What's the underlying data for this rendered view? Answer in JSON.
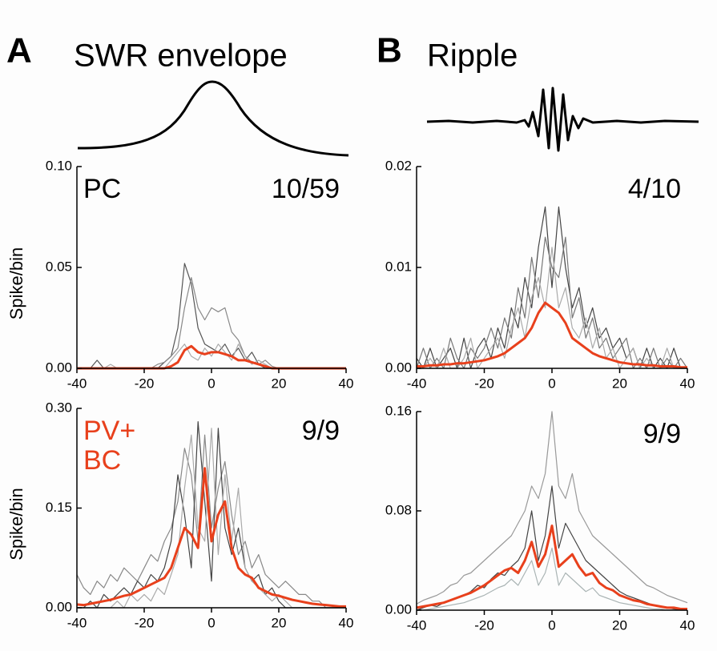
{
  "panels": [
    {
      "letter": "A",
      "title": "SWR envelope"
    },
    {
      "letter": "B",
      "title": "Ripple"
    }
  ],
  "chart_data": [
    {
      "type": "line",
      "ylabel": "Spike/bin",
      "cell_label": [
        "PC"
      ],
      "cell_label_color": "#000000",
      "count_label": "10/59",
      "xlim": [
        -40,
        40
      ],
      "xticks": [
        -40,
        -20,
        0,
        20,
        40
      ],
      "ylim": [
        0,
        0.1
      ],
      "yticks": [
        {
          "value": 0,
          "label": "0.00"
        },
        0.05,
        {
          "value": 0.1,
          "label": "0.10"
        }
      ],
      "x": [
        -40,
        -38,
        -36,
        -34,
        -32,
        -30,
        -28,
        -26,
        -24,
        -22,
        -20,
        -18,
        -16,
        -14,
        -12,
        -10,
        -8,
        -6,
        -4,
        -2,
        0,
        2,
        4,
        6,
        8,
        10,
        12,
        14,
        16,
        18,
        20,
        22,
        24,
        26,
        28,
        30,
        32,
        34,
        36,
        38,
        40
      ],
      "series": [
        {
          "color": "#555555",
          "values": [
            0,
            0,
            0,
            0.004,
            0,
            0,
            0,
            0,
            0,
            0,
            0,
            0,
            0,
            0.003,
            0.006,
            0.02,
            0.052,
            0.042,
            0.02,
            0.012,
            0.01,
            0.008,
            0.012,
            0.006,
            0.01,
            0.004,
            0.008,
            0.002,
            0,
            0,
            0,
            0,
            0,
            0,
            0,
            0,
            0,
            0,
            0,
            0,
            0
          ]
        },
        {
          "color": "#888888",
          "values": [
            0,
            0,
            0,
            0,
            0,
            0,
            0,
            0,
            0,
            0,
            0,
            0,
            0.002,
            0.003,
            0.006,
            0.01,
            0.03,
            0.045,
            0.03,
            0.024,
            0.03,
            0.028,
            0.03,
            0.018,
            0.014,
            0.006,
            0.003,
            0.002,
            0.004,
            0.001,
            0,
            0,
            0,
            0,
            0,
            0,
            0,
            0,
            0,
            0,
            0
          ]
        },
        {
          "color": "#aaaaaa",
          "values": [
            0,
            0,
            0,
            0,
            0,
            0.002,
            0,
            0,
            0,
            0,
            0,
            0,
            0,
            0,
            0.004,
            0.008,
            0.012,
            0.006,
            0.004,
            0.01,
            0.006,
            0.012,
            0.008,
            0.004,
            0.012,
            0.006,
            0.002,
            0.004,
            0.002,
            0,
            0,
            0,
            0,
            0,
            0,
            0,
            0,
            0,
            0,
            0,
            0
          ]
        },
        {
          "color": "#e8401c",
          "values": [
            0,
            0,
            0,
            0,
            0,
            0,
            0,
            0,
            0,
            0,
            0,
            0,
            0,
            0,
            0.001,
            0.003,
            0.009,
            0.011,
            0.008,
            0.007,
            0.008,
            0.008,
            0.007,
            0.006,
            0.004,
            0.004,
            0.003,
            0.002,
            0.001,
            0,
            0,
            0,
            0,
            0,
            0,
            0,
            0,
            0,
            0,
            0,
            0
          ]
        }
      ]
    },
    {
      "type": "line",
      "count_label": "4/10",
      "xlim": [
        -40,
        40
      ],
      "xticks": [
        -40,
        -20,
        0,
        20,
        40
      ],
      "ylim": [
        0,
        0.02
      ],
      "yticks": [
        {
          "value": 0,
          "label": "0.00"
        },
        0.01,
        0.02
      ],
      "x": [
        -40,
        -38,
        -36,
        -34,
        -32,
        -30,
        -28,
        -26,
        -24,
        -22,
        -20,
        -18,
        -16,
        -14,
        -12,
        -10,
        -8,
        -6,
        -4,
        -2,
        0,
        2,
        4,
        6,
        8,
        10,
        12,
        14,
        16,
        18,
        20,
        22,
        24,
        26,
        28,
        30,
        32,
        34,
        36,
        38,
        40
      ],
      "series": [
        {
          "color": "#444444",
          "values": [
            0.001,
            0,
            0.002,
            0,
            0.001,
            0.002,
            0,
            0.003,
            0,
            0.002,
            0.003,
            0.001,
            0.004,
            0.002,
            0.006,
            0.004,
            0.009,
            0.006,
            0.012,
            0.016,
            0.008,
            0.016,
            0.01,
            0.006,
            0.008,
            0.004,
            0.006,
            0.003,
            0.004,
            0.002,
            0.003,
            0.001,
            0.002,
            0,
            0.002,
            0,
            0.001,
            0,
            0.002,
            0,
            0
          ]
        },
        {
          "color": "#777777",
          "values": [
            0,
            0.002,
            0,
            0.001,
            0,
            0.003,
            0.001,
            0,
            0.002,
            0.001,
            0.002,
            0.004,
            0.002,
            0.005,
            0.003,
            0.008,
            0.005,
            0.011,
            0.007,
            0.013,
            0.01,
            0.009,
            0.013,
            0.005,
            0.007,
            0.003,
            0.005,
            0.002,
            0.003,
            0.001,
            0.002,
            0.003,
            0,
            0.001,
            0,
            0.002,
            0,
            0.001,
            0,
            0.001,
            0
          ]
        },
        {
          "color": "#aaaaaa",
          "values": [
            0,
            0,
            0.001,
            0,
            0.002,
            0,
            0,
            0.001,
            0.003,
            0,
            0.001,
            0.002,
            0.003,
            0.001,
            0.004,
            0.006,
            0.003,
            0.007,
            0.009,
            0.006,
            0.012,
            0.006,
            0.008,
            0.004,
            0.003,
            0.005,
            0.002,
            0.004,
            0.001,
            0.002,
            0,
            0.001,
            0.002,
            0,
            0.001,
            0,
            0,
            0.002,
            0,
            0,
            0
          ]
        },
        {
          "color": "#e8401c",
          "values": [
            0.0002,
            0.0002,
            0.0003,
            0.0003,
            0.0004,
            0.0004,
            0.0005,
            0.0005,
            0.0006,
            0.0007,
            0.0008,
            0.001,
            0.0012,
            0.0015,
            0.002,
            0.0025,
            0.003,
            0.004,
            0.0055,
            0.0065,
            0.006,
            0.0055,
            0.0045,
            0.003,
            0.0025,
            0.002,
            0.0015,
            0.0012,
            0.001,
            0.0008,
            0.0006,
            0.0005,
            0.0004,
            0.0004,
            0.0003,
            0.0003,
            0.0002,
            0.0002,
            0.0002,
            0.0001,
            0.0001
          ]
        }
      ]
    },
    {
      "type": "line",
      "ylabel": "Spike/bin",
      "cell_label": [
        "PV+",
        "BC"
      ],
      "cell_label_color": "#e8401c",
      "count_label": "9/9",
      "xlim": [
        -40,
        40
      ],
      "xticks": [
        -40,
        -20,
        0,
        20,
        40
      ],
      "ylim": [
        0,
        0.3
      ],
      "yticks": [
        {
          "value": 0,
          "label": "0.00"
        },
        0.15,
        {
          "value": 0.3,
          "label": "0.30"
        }
      ],
      "x": [
        -40,
        -38,
        -36,
        -34,
        -32,
        -30,
        -28,
        -26,
        -24,
        -22,
        -20,
        -18,
        -16,
        -14,
        -12,
        -10,
        -8,
        -6,
        -4,
        -2,
        0,
        2,
        4,
        6,
        8,
        10,
        12,
        14,
        16,
        18,
        20,
        22,
        24,
        26,
        28,
        30,
        32,
        34,
        36,
        38,
        40
      ],
      "series": [
        {
          "color": "#888888",
          "values": [
            0.05,
            0.03,
            0.02,
            0.04,
            0.03,
            0.05,
            0.04,
            0.06,
            0.05,
            0.04,
            0.06,
            0.08,
            0.07,
            0.1,
            0.12,
            0.16,
            0.24,
            0.2,
            0.1,
            0.26,
            0.12,
            0.18,
            0.22,
            0.14,
            0.08,
            0.1,
            0.06,
            0.08,
            0.05,
            0.04,
            0.03,
            0.04,
            0.03,
            0.02,
            0.02,
            0.01,
            0.01,
            0,
            0,
            0,
            0
          ]
        },
        {
          "color": "#444444",
          "values": [
            0,
            0,
            0.01,
            0,
            0.02,
            0.01,
            0.02,
            0.03,
            0.02,
            0.04,
            0.03,
            0.05,
            0.04,
            0.06,
            0.1,
            0.2,
            0.14,
            0.06,
            0.28,
            0.16,
            0.04,
            0.27,
            0.12,
            0.08,
            0.12,
            0.06,
            0.04,
            0.05,
            0.02,
            0.03,
            0.01,
            0,
            0,
            0,
            0,
            0,
            0,
            0,
            0,
            0,
            0
          ]
        },
        {
          "color": "#aaaaaa",
          "values": [
            0,
            0,
            0,
            0,
            0,
            0,
            0.01,
            0,
            0.02,
            0.01,
            0.02,
            0.01,
            0.03,
            0.02,
            0.05,
            0.08,
            0.18,
            0.26,
            0.12,
            0.1,
            0.27,
            0.08,
            0.2,
            0.1,
            0.18,
            0.06,
            0.04,
            0.03,
            0.02,
            0.01,
            0.02,
            0.01,
            0,
            0,
            0,
            0,
            0,
            0,
            0,
            0,
            0
          ]
        },
        {
          "color": "#e8401c",
          "values": [
            0.005,
            0.004,
            0.006,
            0.008,
            0.01,
            0.012,
            0.015,
            0.018,
            0.02,
            0.025,
            0.03,
            0.035,
            0.04,
            0.045,
            0.06,
            0.09,
            0.12,
            0.11,
            0.09,
            0.21,
            0.1,
            0.14,
            0.16,
            0.09,
            0.06,
            0.05,
            0.045,
            0.03,
            0.025,
            0.02,
            0.018,
            0.015,
            0.012,
            0.01,
            0.008,
            0.006,
            0.005,
            0.004,
            0.003,
            0.002,
            0.002
          ]
        }
      ]
    },
    {
      "type": "line",
      "count_label": "9/9",
      "xlim": [
        -40,
        40
      ],
      "xticks": [
        -40,
        -20,
        0,
        20,
        40
      ],
      "ylim": [
        0,
        0.16
      ],
      "yticks": [
        {
          "value": 0,
          "label": "0.00"
        },
        0.08,
        0.16
      ],
      "x": [
        -40,
        -38,
        -36,
        -34,
        -32,
        -30,
        -28,
        -26,
        -24,
        -22,
        -20,
        -18,
        -16,
        -14,
        -12,
        -10,
        -8,
        -6,
        -4,
        -2,
        0,
        2,
        4,
        6,
        8,
        10,
        12,
        14,
        16,
        18,
        20,
        22,
        24,
        26,
        28,
        30,
        32,
        34,
        36,
        38,
        40
      ],
      "series": [
        {
          "color": "#999999",
          "values": [
            0.005,
            0.008,
            0.01,
            0.012,
            0.015,
            0.02,
            0.022,
            0.028,
            0.03,
            0.035,
            0.04,
            0.045,
            0.05,
            0.055,
            0.06,
            0.07,
            0.08,
            0.1,
            0.09,
            0.11,
            0.16,
            0.1,
            0.09,
            0.11,
            0.08,
            0.07,
            0.06,
            0.055,
            0.05,
            0.045,
            0.04,
            0.035,
            0.03,
            0.025,
            0.02,
            0.018,
            0.015,
            0.012,
            0.01,
            0.008,
            0.006
          ]
        },
        {
          "color": "#444444",
          "values": [
            0,
            0.002,
            0.004,
            0.003,
            0.006,
            0.008,
            0.01,
            0.012,
            0.015,
            0.02,
            0.018,
            0.025,
            0.03,
            0.028,
            0.035,
            0.04,
            0.05,
            0.08,
            0.04,
            0.06,
            0.1,
            0.05,
            0.07,
            0.06,
            0.05,
            0.04,
            0.035,
            0.03,
            0.025,
            0.02,
            0.015,
            0.012,
            0.01,
            0.008,
            0.006,
            0.004,
            0.003,
            0.002,
            0.001,
            0,
            0
          ]
        },
        {
          "color": "#aab4b4",
          "values": [
            0,
            0,
            0.001,
            0.002,
            0.003,
            0.004,
            0.005,
            0.006,
            0.008,
            0.01,
            0.012,
            0.015,
            0.018,
            0.02,
            0.025,
            0.02,
            0.03,
            0.04,
            0.02,
            0.03,
            0.05,
            0.02,
            0.03,
            0.025,
            0.02,
            0.015,
            0.018,
            0.012,
            0.01,
            0.008,
            0.006,
            0.005,
            0.004,
            0.003,
            0.002,
            0.001,
            0.001,
            0,
            0,
            0,
            0
          ]
        },
        {
          "color": "#e8401c",
          "values": [
            0.002,
            0.003,
            0.004,
            0.005,
            0.006,
            0.008,
            0.01,
            0.012,
            0.014,
            0.017,
            0.02,
            0.024,
            0.028,
            0.032,
            0.034,
            0.03,
            0.04,
            0.055,
            0.035,
            0.045,
            0.068,
            0.035,
            0.04,
            0.045,
            0.035,
            0.028,
            0.03,
            0.022,
            0.018,
            0.016,
            0.012,
            0.01,
            0.008,
            0.007,
            0.005,
            0.004,
            0.003,
            0.002,
            0.002,
            0.001,
            0.001
          ]
        }
      ]
    }
  ]
}
